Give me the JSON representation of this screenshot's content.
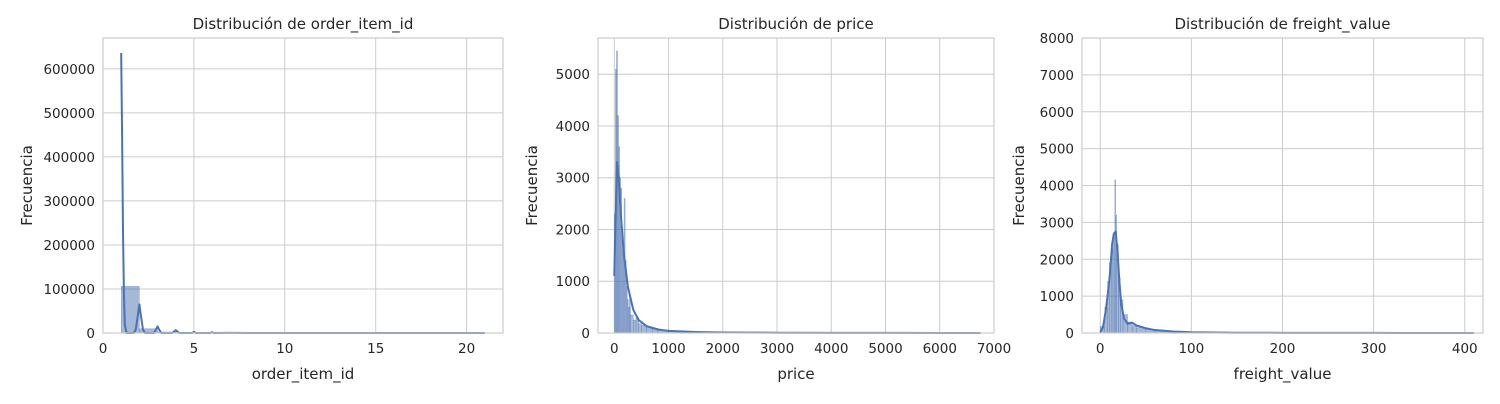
{
  "chart_data": [
    {
      "type": "histogram",
      "title": "Distribución de order_item_id",
      "xlabel": "order_item_id",
      "ylabel": "Frecuencia",
      "xlim": [
        0,
        22
      ],
      "ylim": [
        0,
        670000
      ],
      "xticks": [
        0,
        5,
        10,
        15,
        20
      ],
      "yticks": [
        0,
        100000,
        200000,
        300000,
        400000,
        500000,
        600000
      ],
      "xtick_labels": [
        "0",
        "5",
        "10",
        "15",
        "20"
      ],
      "ytick_labels": [
        "0",
        "100000",
        "200000",
        "300000",
        "400000",
        "500000",
        "600000"
      ],
      "grid": true,
      "color": "#4c72b0",
      "bars": [
        {
          "x0": 1.0,
          "x1": 2.0,
          "count": 106000
        },
        {
          "x0": 2.0,
          "x1": 3.0,
          "count": 9800
        },
        {
          "x0": 3.0,
          "x1": 4.0,
          "count": 2300
        },
        {
          "x0": 4.0,
          "x1": 5.0,
          "count": 950
        },
        {
          "x0": 5.0,
          "x1": 6.0,
          "count": 460
        },
        {
          "x0": 6.0,
          "x1": 7.0,
          "count": 260
        },
        {
          "x0": 7.0,
          "x1": 8.0,
          "count": 60
        },
        {
          "x0": 8.0,
          "x1": 9.0,
          "count": 36
        },
        {
          "x0": 9.0,
          "x1": 10.0,
          "count": 28
        },
        {
          "x0": 10.0,
          "x1": 11.0,
          "count": 25
        },
        {
          "x0": 11.0,
          "x1": 12.0,
          "count": 17
        },
        {
          "x0": 12.0,
          "x1": 13.0,
          "count": 13
        },
        {
          "x0": 13.0,
          "x1": 14.0,
          "count": 8
        },
        {
          "x0": 14.0,
          "x1": 15.0,
          "count": 7
        },
        {
          "x0": 15.0,
          "x1": 16.0,
          "count": 5
        },
        {
          "x0": 16.0,
          "x1": 17.0,
          "count": 3
        },
        {
          "x0": 17.0,
          "x1": 18.0,
          "count": 3
        },
        {
          "x0": 18.0,
          "x1": 19.0,
          "count": 3
        },
        {
          "x0": 19.0,
          "x1": 20.0,
          "count": 3
        },
        {
          "x0": 20.0,
          "x1": 21.0,
          "count": 2
        }
      ],
      "kde": [
        [
          1.0,
          636000
        ],
        [
          1.05,
          450000
        ],
        [
          1.1,
          230000
        ],
        [
          1.15,
          90000
        ],
        [
          1.2,
          18000
        ],
        [
          1.3,
          0
        ],
        [
          1.7,
          0
        ],
        [
          1.8,
          8000
        ],
        [
          1.9,
          35000
        ],
        [
          2.0,
          65000
        ],
        [
          2.1,
          35000
        ],
        [
          2.2,
          8000
        ],
        [
          2.3,
          0
        ],
        [
          2.8,
          0
        ],
        [
          2.9,
          7000
        ],
        [
          3.0,
          15000
        ],
        [
          3.1,
          7000
        ],
        [
          3.2,
          0
        ],
        [
          3.8,
          0
        ],
        [
          3.9,
          3000
        ],
        [
          4.0,
          6500
        ],
        [
          4.1,
          3000
        ],
        [
          4.2,
          0
        ],
        [
          4.9,
          0
        ],
        [
          5.0,
          2500
        ],
        [
          5.1,
          0
        ],
        [
          5.9,
          0
        ],
        [
          6.0,
          1500
        ],
        [
          6.1,
          0
        ],
        [
          7.0,
          400
        ],
        [
          8.0,
          0
        ],
        [
          21.0,
          0
        ]
      ]
    },
    {
      "type": "histogram",
      "title": "Distribución de price",
      "xlabel": "price",
      "ylabel": "Frecuencia",
      "xlim": [
        -300,
        7000
      ],
      "ylim": [
        0,
        5700
      ],
      "xticks": [
        0,
        1000,
        2000,
        3000,
        4000,
        5000,
        6000,
        7000
      ],
      "yticks": [
        0,
        1000,
        2000,
        3000,
        4000,
        5000
      ],
      "xtick_labels": [
        "0",
        "1000",
        "2000",
        "3000",
        "4000",
        "5000",
        "6000",
        "7000"
      ],
      "ytick_labels": [
        "0",
        "1000",
        "2000",
        "3000",
        "4000",
        "5000"
      ],
      "grid": true,
      "color": "#4c72b0",
      "bars": [
        {
          "x0": 0,
          "x1": 20,
          "count": 2300
        },
        {
          "x0": 20,
          "x1": 40,
          "count": 5100
        },
        {
          "x0": 40,
          "x1": 60,
          "count": 5450
        },
        {
          "x0": 60,
          "x1": 80,
          "count": 4200
        },
        {
          "x0": 80,
          "x1": 100,
          "count": 3600
        },
        {
          "x0": 100,
          "x1": 120,
          "count": 3000
        },
        {
          "x0": 120,
          "x1": 140,
          "count": 2800
        },
        {
          "x0": 140,
          "x1": 160,
          "count": 2000
        },
        {
          "x0": 160,
          "x1": 180,
          "count": 1700
        },
        {
          "x0": 180,
          "x1": 200,
          "count": 2600
        },
        {
          "x0": 200,
          "x1": 220,
          "count": 1400
        },
        {
          "x0": 220,
          "x1": 240,
          "count": 900
        },
        {
          "x0": 240,
          "x1": 260,
          "count": 650
        },
        {
          "x0": 260,
          "x1": 280,
          "count": 500
        },
        {
          "x0": 280,
          "x1": 300,
          "count": 700
        },
        {
          "x0": 300,
          "x1": 350,
          "count": 350
        },
        {
          "x0": 350,
          "x1": 400,
          "count": 250
        },
        {
          "x0": 400,
          "x1": 450,
          "count": 300
        },
        {
          "x0": 450,
          "x1": 500,
          "count": 180
        },
        {
          "x0": 500,
          "x1": 600,
          "count": 150
        },
        {
          "x0": 600,
          "x1": 700,
          "count": 120
        },
        {
          "x0": 700,
          "x1": 800,
          "count": 90
        },
        {
          "x0": 800,
          "x1": 1000,
          "count": 60
        },
        {
          "x0": 1000,
          "x1": 1300,
          "count": 40
        },
        {
          "x0": 1300,
          "x1": 1700,
          "count": 20
        },
        {
          "x0": 1700,
          "x1": 2500,
          "count": 10
        },
        {
          "x0": 2500,
          "x1": 4000,
          "count": 4
        },
        {
          "x0": 4000,
          "x1": 6800,
          "count": 2
        }
      ],
      "kde": [
        [
          0,
          1100
        ],
        [
          20,
          2000
        ],
        [
          50,
          3300
        ],
        [
          80,
          3000
        ],
        [
          120,
          2300
        ],
        [
          180,
          1500
        ],
        [
          250,
          900
        ],
        [
          350,
          450
        ],
        [
          450,
          250
        ],
        [
          600,
          130
        ],
        [
          800,
          70
        ],
        [
          1000,
          40
        ],
        [
          1500,
          20
        ],
        [
          2000,
          10
        ],
        [
          3000,
          5
        ],
        [
          4000,
          3
        ],
        [
          5000,
          2
        ],
        [
          6000,
          1
        ],
        [
          6750,
          0
        ]
      ]
    },
    {
      "type": "histogram",
      "title": "Distribución de freight_value",
      "xlabel": "freight_value",
      "ylabel": "Frecuencia",
      "xlim": [
        -20,
        420
      ],
      "ylim": [
        0,
        8000
      ],
      "xticks": [
        0,
        100,
        200,
        300,
        400
      ],
      "yticks": [
        0,
        1000,
        2000,
        3000,
        4000,
        5000,
        6000,
        7000,
        8000
      ],
      "xtick_labels": [
        "0",
        "100",
        "200",
        "300",
        "400"
      ],
      "ytick_labels": [
        "0",
        "1000",
        "2000",
        "3000",
        "4000",
        "5000",
        "6000",
        "7000",
        "8000"
      ],
      "grid": true,
      "color": "#4c72b0",
      "bars": [
        {
          "x0": 0,
          "x1": 5,
          "count": 180
        },
        {
          "x0": 5,
          "x1": 8,
          "count": 700
        },
        {
          "x0": 8,
          "x1": 10,
          "count": 1400
        },
        {
          "x0": 10,
          "x1": 12,
          "count": 1900
        },
        {
          "x0": 12,
          "x1": 14,
          "count": 2300
        },
        {
          "x0": 14,
          "x1": 16,
          "count": 2600
        },
        {
          "x0": 16,
          "x1": 17,
          "count": 4150
        },
        {
          "x0": 17,
          "x1": 18,
          "count": 3200
        },
        {
          "x0": 18,
          "x1": 20,
          "count": 2400
        },
        {
          "x0": 20,
          "x1": 22,
          "count": 1500
        },
        {
          "x0": 22,
          "x1": 25,
          "count": 900
        },
        {
          "x0": 25,
          "x1": 30,
          "count": 500
        },
        {
          "x0": 30,
          "x1": 35,
          "count": 300
        },
        {
          "x0": 35,
          "x1": 40,
          "count": 200
        },
        {
          "x0": 40,
          "x1": 50,
          "count": 140
        },
        {
          "x0": 50,
          "x1": 60,
          "count": 90
        },
        {
          "x0": 60,
          "x1": 80,
          "count": 50
        },
        {
          "x0": 80,
          "x1": 100,
          "count": 25
        },
        {
          "x0": 100,
          "x1": 150,
          "count": 10
        },
        {
          "x0": 150,
          "x1": 250,
          "count": 4
        },
        {
          "x0": 250,
          "x1": 410,
          "count": 2
        }
      ],
      "kde": [
        [
          0,
          20
        ],
        [
          3,
          150
        ],
        [
          6,
          600
        ],
        [
          9,
          1200
        ],
        [
          11,
          1700
        ],
        [
          13,
          2400
        ],
        [
          15,
          2700
        ],
        [
          17,
          2750
        ],
        [
          19,
          2200
        ],
        [
          21,
          1400
        ],
        [
          23,
          800
        ],
        [
          26,
          400
        ],
        [
          30,
          250
        ],
        [
          35,
          280
        ],
        [
          40,
          200
        ],
        [
          50,
          130
        ],
        [
          60,
          80
        ],
        [
          80,
          40
        ],
        [
          100,
          20
        ],
        [
          150,
          8
        ],
        [
          200,
          4
        ],
        [
          300,
          2
        ],
        [
          410,
          0
        ]
      ]
    }
  ]
}
